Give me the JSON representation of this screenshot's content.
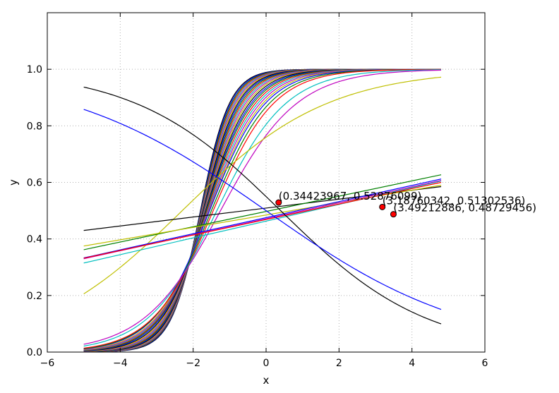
{
  "chart_data": {
    "type": "line",
    "title": "",
    "xlabel": "x",
    "ylabel": "y",
    "xlim": [
      -6,
      6
    ],
    "ylim": [
      0.0,
      1.2
    ],
    "xticks": [
      -6,
      -4,
      -2,
      0,
      2,
      4,
      6
    ],
    "xtick_labels": [
      "−6",
      "−4",
      "−2",
      "0",
      "2",
      "4",
      "6"
    ],
    "yticks": [
      0.0,
      0.2,
      0.4,
      0.6,
      0.8,
      1.0
    ],
    "ytick_labels": [
      "0.0",
      "0.2",
      "0.4",
      "0.6",
      "0.8",
      "1.0"
    ],
    "grid": true,
    "x_range": [
      -5.0,
      4.8
    ],
    "series": [
      {
        "kind": "sigmoid",
        "slope": 2.5,
        "center": -1.8,
        "color": "#000000"
      },
      {
        "kind": "sigmoid",
        "slope": 2.44,
        "center": -1.79,
        "color": "#0000ff"
      },
      {
        "kind": "sigmoid",
        "slope": 2.38,
        "center": -1.78,
        "color": "#008000"
      },
      {
        "kind": "sigmoid",
        "slope": 2.32,
        "center": -1.77,
        "color": "#ff0000"
      },
      {
        "kind": "sigmoid",
        "slope": 2.26,
        "center": -1.76,
        "color": "#00bfbf"
      },
      {
        "kind": "sigmoid",
        "slope": 2.2,
        "center": -1.75,
        "color": "#bf00bf"
      },
      {
        "kind": "sigmoid",
        "slope": 2.14,
        "center": -1.74,
        "color": "#bfbf00"
      },
      {
        "kind": "sigmoid",
        "slope": 2.08,
        "center": -1.73,
        "color": "#000000"
      },
      {
        "kind": "sigmoid",
        "slope": 2.02,
        "center": -1.72,
        "color": "#0000ff"
      },
      {
        "kind": "sigmoid",
        "slope": 1.96,
        "center": -1.71,
        "color": "#008000"
      },
      {
        "kind": "sigmoid",
        "slope": 1.9,
        "center": -1.7,
        "color": "#ff0000"
      },
      {
        "kind": "sigmoid",
        "slope": 1.84,
        "center": -1.69,
        "color": "#00bfbf"
      },
      {
        "kind": "sigmoid",
        "slope": 1.78,
        "center": -1.68,
        "color": "#bf00bf"
      },
      {
        "kind": "sigmoid",
        "slope": 1.72,
        "center": -1.67,
        "color": "#bfbf00"
      },
      {
        "kind": "sigmoid",
        "slope": 1.66,
        "center": -1.66,
        "color": "#000000"
      },
      {
        "kind": "sigmoid",
        "slope": 1.6,
        "center": -1.65,
        "color": "#0000ff"
      },
      {
        "kind": "sigmoid",
        "slope": 1.55,
        "center": -1.64,
        "color": "#008000"
      },
      {
        "kind": "sigmoid",
        "slope": 1.5,
        "center": -1.62,
        "color": "#ff0000"
      },
      {
        "kind": "sigmoid",
        "slope": 1.45,
        "center": -1.6,
        "color": "#00bfbf"
      },
      {
        "kind": "sigmoid",
        "slope": 1.4,
        "center": -1.58,
        "color": "#bf00bf"
      },
      {
        "kind": "sigmoid",
        "slope": 1.35,
        "center": -1.56,
        "color": "#bfbf00"
      },
      {
        "kind": "sigmoid",
        "slope": 1.3,
        "center": -1.55,
        "color": "#0000ff"
      },
      {
        "kind": "sigmoid",
        "slope": 1.25,
        "center": -1.5,
        "color": "#008000"
      },
      {
        "kind": "sigmoid",
        "slope": 1.2,
        "center": -1.45,
        "color": "#ff0000"
      },
      {
        "kind": "sigmoid",
        "slope": 1.05,
        "center": -1.35,
        "color": "#00bfbf"
      },
      {
        "kind": "sigmoid",
        "slope": 0.95,
        "center": -1.25,
        "color": "#bf00bf"
      },
      {
        "kind": "sigmoid",
        "slope": 0.5,
        "center": -2.3,
        "color": "#bfbf00"
      },
      {
        "kind": "linear",
        "x0": -5.0,
        "y0": 0.43,
        "x1": 4.8,
        "y1": 0.585,
        "color": "#000000"
      },
      {
        "kind": "linear",
        "x0": -5.0,
        "y0": 0.362,
        "x1": 4.8,
        "y1": 0.627,
        "color": "#008000"
      },
      {
        "kind": "linear",
        "x0": -5.0,
        "y0": 0.375,
        "x1": 4.8,
        "y1": 0.59,
        "color": "#bfbf00"
      },
      {
        "kind": "linear",
        "x0": -5.0,
        "y0": 0.315,
        "x1": 4.8,
        "y1": 0.605,
        "color": "#00bfbf"
      },
      {
        "kind": "linear",
        "x0": -5.0,
        "y0": 0.333,
        "x1": 4.8,
        "y1": 0.612,
        "color": "#0000ff"
      },
      {
        "kind": "linear",
        "x0": -5.0,
        "y0": 0.33,
        "x1": 4.8,
        "y1": 0.607,
        "color": "#bf00bf"
      },
      {
        "kind": "linear",
        "x0": -5.0,
        "y0": 0.332,
        "x1": 4.8,
        "y1": 0.6,
        "color": "#ff0000"
      },
      {
        "kind": "sigmoid",
        "slope": -0.5,
        "center": 0.4,
        "color": "#000000"
      },
      {
        "kind": "sigmoid",
        "slope": -0.36,
        "center": 0.0,
        "color": "#0000ff"
      }
    ],
    "points": [
      {
        "x": 0.34423967,
        "y": 0.52876099,
        "label": "(0.34423967, 0.52876099)",
        "color": "#ff0000"
      },
      {
        "x": 3.18760342,
        "y": 0.51302536,
        "label": "(3.18760342, 0.51302536)",
        "color": "#ff0000"
      },
      {
        "x": 3.49212886,
        "y": 0.48729456,
        "label": "(3.49212886, 0.48729456)",
        "color": "#ff0000"
      }
    ]
  }
}
